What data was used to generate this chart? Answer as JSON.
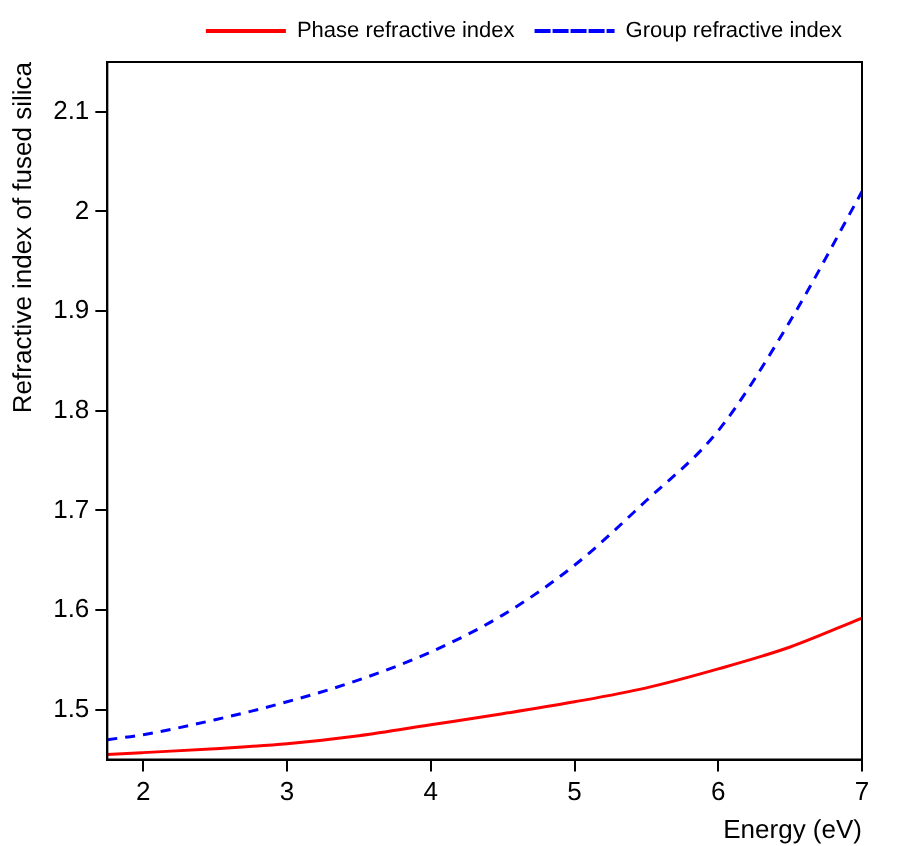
{
  "chart_data": {
    "type": "line",
    "xlabel": "Energy (eV)",
    "ylabel": "Refractive index of fused silica",
    "xlim": [
      1.75,
      7
    ],
    "xticks": [
      2,
      3,
      4,
      5,
      6,
      7
    ],
    "ylim": [
      1.45,
      2.15
    ],
    "yticks": [
      1.5,
      1.6,
      1.7,
      1.8,
      1.9,
      2,
      2.1
    ],
    "grid": false,
    "legend": "top right",
    "marker": "none",
    "series": [
      {
        "name": "Phase refractive index",
        "color": "#ff0000",
        "line_style": "solid",
        "x": [
          1.75,
          2,
          2.5,
          3,
          3.5,
          4,
          4.5,
          5,
          5.5,
          6,
          6.5,
          7
        ],
        "values": [
          1.455,
          1.457,
          1.461,
          1.466,
          1.474,
          1.485,
          1.496,
          1.508,
          1.522,
          1.541,
          1.563,
          1.592
        ]
      },
      {
        "name": "Group refractive index",
        "color": "#0000ff",
        "line_style": "dashed",
        "x": [
          1.75,
          2,
          2.5,
          3,
          3.5,
          4,
          4.5,
          5,
          5.5,
          6,
          6.5,
          7
        ],
        "values": [
          1.47,
          1.475,
          1.49,
          1.508,
          1.53,
          1.558,
          1.595,
          1.645,
          1.71,
          1.78,
          1.89,
          2.02
        ]
      }
    ]
  }
}
